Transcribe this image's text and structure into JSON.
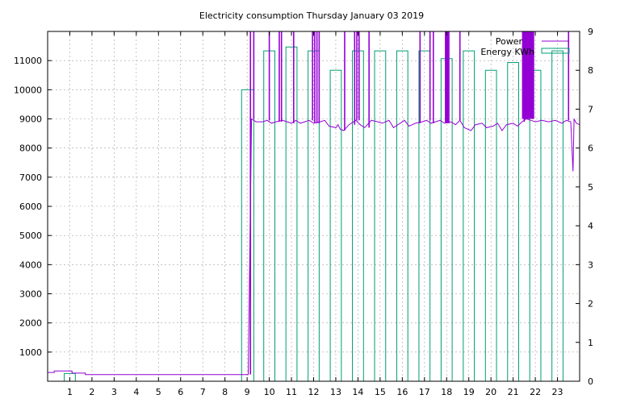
{
  "chart_data": {
    "type": "bar",
    "title": "Electricity consumption Thursday January 03 2019",
    "xlabel": "",
    "ylabel": "",
    "y2label": "",
    "xlim": [
      0,
      24
    ],
    "ylim": [
      0,
      12000
    ],
    "y2lim": [
      0,
      9
    ],
    "x_ticks": [
      1,
      2,
      3,
      4,
      5,
      6,
      7,
      8,
      9,
      10,
      11,
      12,
      13,
      14,
      15,
      16,
      17,
      18,
      19,
      20,
      21,
      22,
      23
    ],
    "y_ticks": [
      1000,
      2000,
      3000,
      4000,
      5000,
      6000,
      7000,
      8000,
      9000,
      10000,
      11000
    ],
    "y2_ticks": [
      0,
      1,
      2,
      3,
      4,
      5,
      6,
      7,
      8,
      9
    ],
    "grid": true,
    "legend_position": "top-right",
    "series": [
      {
        "name": "Power",
        "type": "line",
        "axis": "y",
        "color": "#9400d3",
        "spikes_to": 12000,
        "spike_x": [
          9.15,
          9.3,
          10.0,
          10.45,
          10.55,
          11.1,
          11.95,
          12.05,
          12.15,
          12.25,
          13.4,
          13.85,
          13.95,
          14.05,
          14.5,
          16.8,
          17.25,
          17.4,
          17.95,
          18.0,
          18.05,
          18.1,
          18.6,
          21.5,
          23.5
        ],
        "spike_bands": [
          [
            21.4,
            21.95
          ]
        ],
        "points": [
          [
            0.0,
            300
          ],
          [
            0.3,
            300
          ],
          [
            0.3,
            350
          ],
          [
            1.1,
            350
          ],
          [
            1.1,
            280
          ],
          [
            1.7,
            280
          ],
          [
            1.7,
            230
          ],
          [
            9.05,
            230
          ],
          [
            9.2,
            9000
          ],
          [
            9.4,
            8900
          ],
          [
            9.7,
            8900
          ],
          [
            9.9,
            8950
          ],
          [
            10.1,
            8850
          ],
          [
            10.3,
            8900
          ],
          [
            10.6,
            8950
          ],
          [
            10.8,
            8900
          ],
          [
            11.0,
            8850
          ],
          [
            11.2,
            8950
          ],
          [
            11.4,
            8850
          ],
          [
            11.6,
            8900
          ],
          [
            11.8,
            8950
          ],
          [
            12.0,
            8850
          ],
          [
            12.3,
            8900
          ],
          [
            12.5,
            8950
          ],
          [
            12.7,
            8750
          ],
          [
            13.0,
            8700
          ],
          [
            13.1,
            8800
          ],
          [
            13.2,
            8650
          ],
          [
            13.35,
            8600
          ],
          [
            13.6,
            8800
          ],
          [
            13.9,
            8950
          ],
          [
            14.1,
            8800
          ],
          [
            14.3,
            8700
          ],
          [
            14.6,
            8950
          ],
          [
            14.9,
            8900
          ],
          [
            15.1,
            8850
          ],
          [
            15.4,
            8950
          ],
          [
            15.6,
            8700
          ],
          [
            15.9,
            8850
          ],
          [
            16.1,
            8950
          ],
          [
            16.3,
            8750
          ],
          [
            16.6,
            8850
          ],
          [
            16.9,
            8900
          ],
          [
            17.1,
            8950
          ],
          [
            17.3,
            8850
          ],
          [
            17.5,
            8900
          ],
          [
            17.7,
            8950
          ],
          [
            17.9,
            8850
          ],
          [
            18.2,
            8900
          ],
          [
            18.4,
            8800
          ],
          [
            18.6,
            8950
          ],
          [
            18.8,
            8700
          ],
          [
            19.1,
            8600
          ],
          [
            19.3,
            8800
          ],
          [
            19.6,
            8850
          ],
          [
            19.8,
            8700
          ],
          [
            20.1,
            8750
          ],
          [
            20.3,
            8850
          ],
          [
            20.5,
            8600
          ],
          [
            20.7,
            8800
          ],
          [
            21.0,
            8850
          ],
          [
            21.2,
            8750
          ],
          [
            21.4,
            8900
          ],
          [
            21.6,
            9000
          ],
          [
            21.8,
            8950
          ],
          [
            22.0,
            8900
          ],
          [
            22.3,
            8950
          ],
          [
            22.6,
            8900
          ],
          [
            22.9,
            8950
          ],
          [
            23.2,
            8850
          ],
          [
            23.4,
            8950
          ],
          [
            23.6,
            8900
          ],
          [
            23.7,
            7200
          ],
          [
            23.75,
            9000
          ],
          [
            23.85,
            8850
          ],
          [
            24.0,
            8800
          ]
        ]
      },
      {
        "name": "Energy KWh",
        "type": "bar",
        "axis": "y2",
        "color": "#009e73",
        "bars": [
          {
            "x0": 0.75,
            "x1": 1.25,
            "v": 0.2
          },
          {
            "x0": 8.75,
            "x1": 9.3,
            "v": 7.5
          },
          {
            "x0": 9.75,
            "x1": 10.25,
            "v": 8.5
          },
          {
            "x0": 10.75,
            "x1": 11.25,
            "v": 8.6
          },
          {
            "x0": 11.75,
            "x1": 12.25,
            "v": 8.5
          },
          {
            "x0": 12.75,
            "x1": 13.25,
            "v": 8.0
          },
          {
            "x0": 13.75,
            "x1": 14.25,
            "v": 8.5
          },
          {
            "x0": 14.75,
            "x1": 15.25,
            "v": 8.5
          },
          {
            "x0": 15.75,
            "x1": 16.25,
            "v": 8.5
          },
          {
            "x0": 16.75,
            "x1": 17.25,
            "v": 8.5
          },
          {
            "x0": 17.75,
            "x1": 18.25,
            "v": 8.3
          },
          {
            "x0": 18.75,
            "x1": 19.25,
            "v": 8.5
          },
          {
            "x0": 19.75,
            "x1": 20.25,
            "v": 8.0
          },
          {
            "x0": 20.75,
            "x1": 21.25,
            "v": 8.2
          },
          {
            "x0": 21.75,
            "x1": 22.25,
            "v": 8.0
          },
          {
            "x0": 22.75,
            "x1": 23.25,
            "v": 8.5
          }
        ]
      }
    ]
  }
}
